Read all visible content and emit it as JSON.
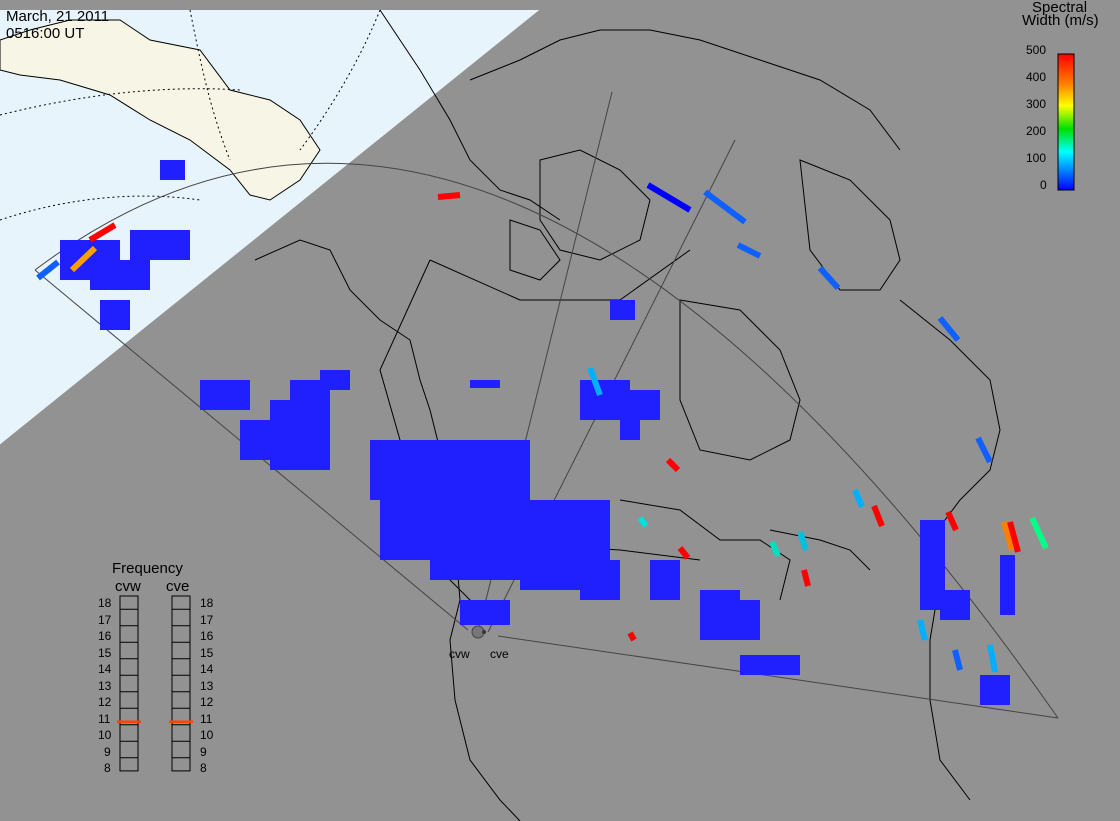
{
  "header": {
    "date": "March, 21 2011",
    "time": "0516:00 UT"
  },
  "colorbar": {
    "title_line1": "Spectral",
    "title_line2": "Width (m/s)",
    "ticks": [
      "500",
      "400",
      "300",
      "200",
      "100",
      "0"
    ],
    "colors": [
      "#ff0000",
      "#ff8000",
      "#ffff00",
      "#00e000",
      "#00ffff",
      "#0080ff",
      "#0000ff"
    ]
  },
  "radars": {
    "west": "cvw",
    "east": "cve"
  },
  "frequency": {
    "title": "Frequency",
    "col_west": "cvw",
    "col_east": "cve",
    "levels": [
      "18",
      "17",
      "16",
      "15",
      "14",
      "13",
      "12",
      "11",
      "10",
      "9",
      "8"
    ],
    "marker_west": 10.8,
    "marker_east": 10.8,
    "marker_color": "#ff4400"
  },
  "map_colors": {
    "land": "#f7f6e6",
    "ocean": "#e8f4fc",
    "night": "#929292",
    "scatter_main": "#2020ff"
  }
}
